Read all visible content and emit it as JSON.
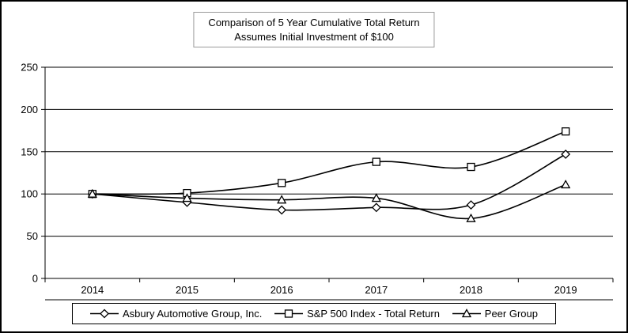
{
  "chart_data": {
    "type": "line",
    "title": "Comparison of 5 Year Cumulative Total Return",
    "subtitle": "Assumes Initial Investment of $100",
    "categories": [
      "2014",
      "2015",
      "2016",
      "2017",
      "2018",
      "2019"
    ],
    "series": [
      {
        "name": "Asbury Automotive Group, Inc.",
        "marker": "diamond",
        "values": [
          100,
          90,
          81,
          84,
          87,
          147
        ]
      },
      {
        "name": "S&P 500 Index - Total Return",
        "marker": "square",
        "values": [
          100,
          101,
          113,
          138,
          132,
          174
        ]
      },
      {
        "name": "Peer Group",
        "marker": "triangle",
        "values": [
          100,
          95,
          93,
          95,
          71,
          111
        ]
      }
    ],
    "yticks": [
      0,
      50,
      100,
      150,
      200,
      250
    ],
    "ylim": [
      0,
      250
    ],
    "grid": true,
    "legend_position": "bottom",
    "line_color": "#000000",
    "marker_fill": "#ffffff",
    "background": "#ffffff"
  }
}
